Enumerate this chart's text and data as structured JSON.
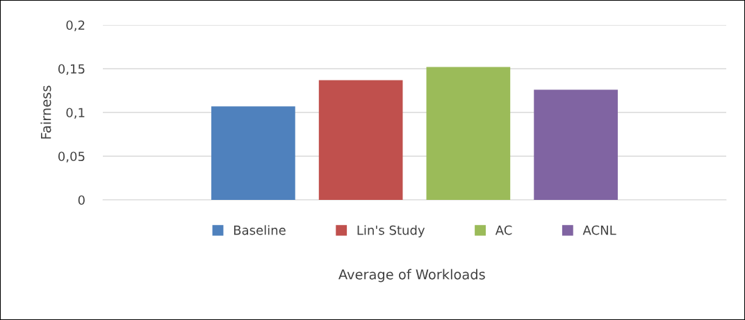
{
  "chart_data": {
    "type": "bar",
    "categories": [
      null
    ],
    "annotations": [
      "Average of Workloads"
    ],
    "ylabel": "Fairness",
    "series": [
      {
        "name": "Baseline",
        "color": "#4f81bd",
        "values": [
          0.107
        ]
      },
      {
        "name": "Lin's Study",
        "color": "#c0504d",
        "values": [
          0.137
        ]
      },
      {
        "name": "AC",
        "color": "#9bbb59",
        "values": [
          0.152
        ]
      },
      {
        "name": "ACNL",
        "color": "#8064a2",
        "values": [
          0.126
        ]
      }
    ],
    "ylim": [
      0,
      0.2
    ],
    "yticks": [
      {
        "value": 0,
        "label": "0"
      },
      {
        "value": 0.05,
        "label": "0,05"
      },
      {
        "value": 0.1,
        "label": "0,1"
      },
      {
        "value": 0.15,
        "label": "0,15"
      },
      {
        "value": 0.2,
        "label": "0,2"
      }
    ],
    "grid": "y",
    "legend": "bottom"
  }
}
